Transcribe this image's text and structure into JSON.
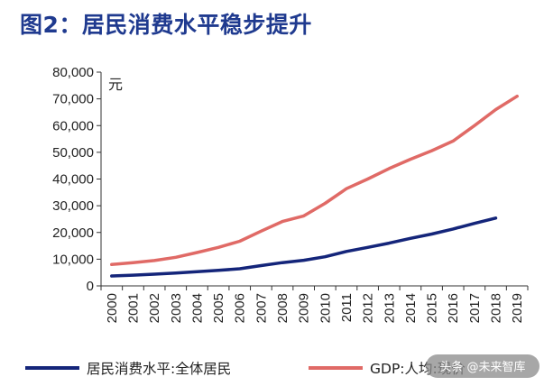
{
  "title": "图2：居民消费水平稳步提升",
  "watermark": "头条 @未来智库",
  "chart_data": {
    "type": "line",
    "unit_label": "元",
    "x": [
      "2000",
      "2001",
      "2002",
      "2003",
      "2004",
      "2005",
      "2006",
      "2007",
      "2008",
      "2009",
      "2010",
      "2011",
      "2012",
      "2013",
      "2014",
      "2015",
      "2016",
      "2017",
      "2018",
      "2019"
    ],
    "ylim": [
      0,
      80000
    ],
    "yticks": [
      0,
      10000,
      20000,
      30000,
      40000,
      50000,
      60000,
      70000,
      80000
    ],
    "ytick_labels": [
      "0",
      "10,000",
      "20,000",
      "30,000",
      "40,000",
      "50,000",
      "60,000",
      "70,000",
      "80,000"
    ],
    "grid": false,
    "legend_position": "bottom",
    "series": [
      {
        "name": "居民消费水平:全体居民",
        "color": "#14257a",
        "values": [
          3700,
          4000,
          4400,
          4800,
          5300,
          5800,
          6400,
          7600,
          8700,
          9600,
          10900,
          12900,
          14400,
          16000,
          17800,
          19400,
          21300,
          23400,
          25400,
          null
        ]
      },
      {
        "name": "GDP:人均:现价",
        "color": "#e06a66",
        "values": [
          8000,
          8700,
          9500,
          10700,
          12500,
          14400,
          16700,
          20500,
          24100,
          26200,
          30900,
          36400,
          40000,
          43900,
          47400,
          50600,
          54200,
          60000,
          66000,
          71000
        ]
      }
    ]
  }
}
